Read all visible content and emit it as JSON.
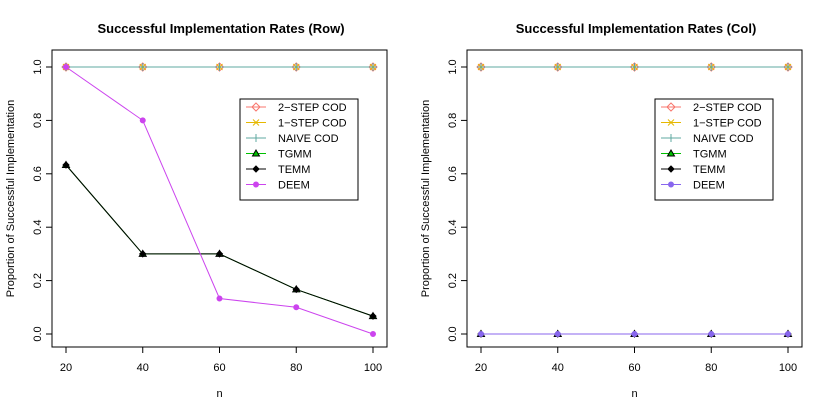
{
  "chart_data": [
    {
      "type": "line",
      "title": "Successful Implementation Rates (Row)",
      "xlabel": "n",
      "ylabel": "Proportion of Successful Implementation",
      "x": [
        20,
        40,
        60,
        80,
        100
      ],
      "xlim": [
        20,
        100
      ],
      "ylim": [
        0,
        1
      ],
      "xticks": [
        "20",
        "40",
        "60",
        "80",
        "100"
      ],
      "yticks": [
        "0.0",
        "0.2",
        "0.4",
        "0.6",
        "0.8",
        "1.0"
      ],
      "legend_position": "top-right",
      "series": [
        {
          "name": "2−STEP COD",
          "color": "#f8766d",
          "marker": "diamond",
          "values": [
            1,
            1,
            1,
            1,
            1
          ]
        },
        {
          "name": "1−STEP COD",
          "color": "#e6b800",
          "marker": "x",
          "values": [
            1,
            1,
            1,
            1,
            1
          ]
        },
        {
          "name": "NAIVE COD",
          "color": "#5fa8a0",
          "marker": "plus",
          "values": [
            1,
            1,
            1,
            1,
            1
          ]
        },
        {
          "name": "TGMM",
          "color": "#00c000",
          "marker": "triangle",
          "values": [
            0.633,
            0.3,
            0.3,
            0.167,
            0.067
          ]
        },
        {
          "name": "TEMM",
          "color": "#000000",
          "marker": "diamond-filled",
          "values": [
            0.633,
            0.3,
            0.3,
            0.167,
            0.067
          ]
        },
        {
          "name": "DEEM",
          "color": "#cc44ee",
          "marker": "circle",
          "values": [
            1,
            0.8,
            0.133,
            0.1,
            0
          ]
        }
      ]
    },
    {
      "type": "line",
      "title": "Successful Implementation Rates (Col)",
      "xlabel": "n",
      "ylabel": "Proportion of Successful Implementation",
      "x": [
        20,
        40,
        60,
        80,
        100
      ],
      "xlim": [
        20,
        100
      ],
      "ylim": [
        0,
        1
      ],
      "xticks": [
        "20",
        "40",
        "60",
        "80",
        "100"
      ],
      "yticks": [
        "0.0",
        "0.2",
        "0.4",
        "0.6",
        "0.8",
        "1.0"
      ],
      "legend_position": "top-right",
      "series": [
        {
          "name": "2−STEP COD",
          "color": "#f8766d",
          "marker": "diamond",
          "values": [
            1,
            1,
            1,
            1,
            1
          ]
        },
        {
          "name": "1−STEP COD",
          "color": "#e6b800",
          "marker": "x",
          "values": [
            1,
            1,
            1,
            1,
            1
          ]
        },
        {
          "name": "NAIVE COD",
          "color": "#5fa8a0",
          "marker": "plus",
          "values": [
            1,
            1,
            1,
            1,
            1
          ]
        },
        {
          "name": "TGMM",
          "color": "#00c000",
          "marker": "triangle",
          "values": [
            0,
            0,
            0,
            0,
            0
          ]
        },
        {
          "name": "TEMM",
          "color": "#000000",
          "marker": "diamond-filled",
          "values": [
            0,
            0,
            0,
            0,
            0
          ]
        },
        {
          "name": "DEEM",
          "color": "#8866ee",
          "marker": "circle",
          "values": [
            0,
            0,
            0,
            0,
            0
          ]
        }
      ]
    }
  ]
}
